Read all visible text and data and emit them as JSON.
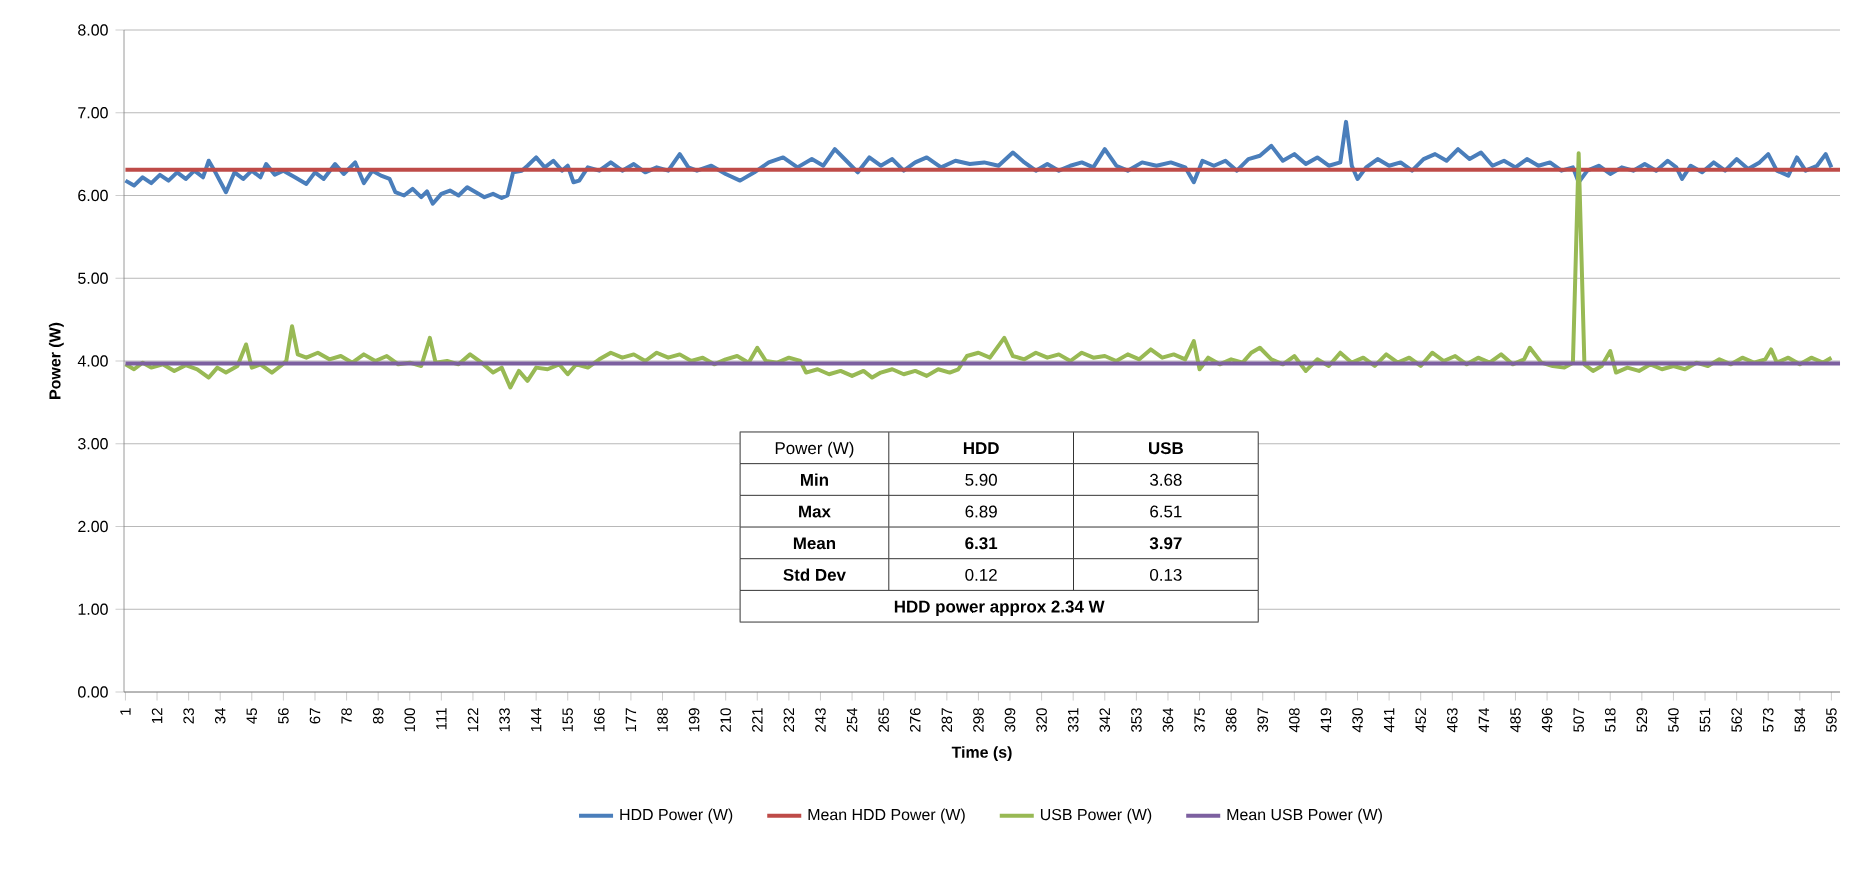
{
  "chart_data": {
    "type": "line",
    "xlabel": "Time (s)",
    "ylabel": "Power (W)",
    "xlim": [
      0.5,
      598
    ],
    "xticks": [
      1,
      12,
      23,
      34,
      45,
      56,
      67,
      78,
      89,
      100,
      111,
      122,
      133,
      144,
      155,
      166,
      177,
      188,
      199,
      210,
      221,
      232,
      243,
      254,
      265,
      276,
      287,
      298,
      309,
      320,
      331,
      342,
      353,
      364,
      375,
      386,
      397,
      408,
      419,
      430,
      441,
      452,
      463,
      474,
      485,
      496,
      507,
      518,
      529,
      540,
      551,
      562,
      573,
      584,
      595
    ],
    "ylim": [
      0,
      8
    ],
    "yticks": [
      {
        "value": 0,
        "label": "0.00"
      },
      {
        "value": 1,
        "label": "1.00"
      },
      {
        "value": 2,
        "label": "2.00"
      },
      {
        "value": 3,
        "label": "3.00"
      },
      {
        "value": 4,
        "label": "4.00"
      },
      {
        "value": 5,
        "label": "5.00"
      },
      {
        "value": 6,
        "label": "6.00"
      },
      {
        "value": 7,
        "label": "7.00"
      },
      {
        "value": 8,
        "label": "8.00"
      }
    ],
    "grid": "y",
    "legend": "bottom",
    "marker": "none",
    "line_style": "solid",
    "annotations": [
      "Power (W)",
      "HDD",
      "USB",
      "Min",
      "5.90",
      "3.68",
      "Max",
      "6.89",
      "6.51",
      "Mean",
      "6.31",
      "3.97",
      "Std Dev",
      "0.12",
      "0.13",
      "HDD power approx 2.34 W"
    ],
    "series": [
      {
        "name": "HDD Power (W)",
        "color": "#4a7ebb",
        "x": [
          1,
          4,
          7,
          10,
          13,
          16,
          19,
          22,
          25,
          28,
          30,
          32,
          36,
          39,
          42,
          45,
          48,
          50,
          53,
          56,
          60,
          64,
          67,
          70,
          74,
          77,
          81,
          84,
          87,
          90,
          93,
          95,
          98,
          101,
          104,
          106,
          108,
          111,
          114,
          117,
          120,
          123,
          126,
          129,
          132,
          134,
          136,
          139,
          141,
          144,
          147,
          150,
          153,
          155,
          157,
          159,
          162,
          166,
          170,
          174,
          178,
          182,
          186,
          190,
          194,
          197,
          200,
          205,
          210,
          215,
          220,
          225,
          230,
          235,
          240,
          244,
          248,
          252,
          256,
          260,
          264,
          268,
          272,
          276,
          280,
          285,
          290,
          295,
          300,
          305,
          310,
          314,
          318,
          322,
          326,
          330,
          334,
          338,
          342,
          346,
          350,
          355,
          360,
          365,
          370,
          373,
          376,
          380,
          384,
          388,
          392,
          396,
          400,
          404,
          408,
          412,
          416,
          420,
          424,
          426,
          428,
          430,
          433,
          437,
          441,
          445,
          449,
          453,
          457,
          461,
          465,
          469,
          473,
          477,
          481,
          485,
          489,
          493,
          497,
          501,
          505,
          507,
          510,
          514,
          518,
          522,
          526,
          530,
          534,
          538,
          541,
          543,
          546,
          550,
          554,
          558,
          562,
          566,
          570,
          573,
          576,
          580,
          583,
          586,
          590,
          593,
          595
        ],
        "values": [
          6.18,
          6.12,
          6.22,
          6.15,
          6.25,
          6.18,
          6.28,
          6.2,
          6.3,
          6.22,
          6.42,
          6.3,
          6.04,
          6.28,
          6.2,
          6.3,
          6.22,
          6.38,
          6.25,
          6.3,
          6.22,
          6.14,
          6.28,
          6.2,
          6.38,
          6.26,
          6.4,
          6.15,
          6.3,
          6.24,
          6.2,
          6.04,
          6.0,
          6.08,
          5.98,
          6.05,
          5.9,
          6.02,
          6.06,
          6.0,
          6.1,
          6.04,
          5.98,
          6.02,
          5.97,
          6.0,
          6.28,
          6.3,
          6.36,
          6.46,
          6.34,
          6.42,
          6.3,
          6.36,
          6.16,
          6.18,
          6.34,
          6.3,
          6.4,
          6.3,
          6.38,
          6.28,
          6.34,
          6.3,
          6.5,
          6.34,
          6.3,
          6.36,
          6.26,
          6.18,
          6.28,
          6.4,
          6.46,
          6.34,
          6.44,
          6.36,
          6.56,
          6.42,
          6.28,
          6.46,
          6.36,
          6.44,
          6.3,
          6.4,
          6.46,
          6.34,
          6.42,
          6.38,
          6.4,
          6.36,
          6.52,
          6.4,
          6.3,
          6.38,
          6.3,
          6.36,
          6.4,
          6.34,
          6.56,
          6.36,
          6.3,
          6.4,
          6.36,
          6.4,
          6.34,
          6.16,
          6.42,
          6.36,
          6.42,
          6.3,
          6.44,
          6.48,
          6.6,
          6.42,
          6.5,
          6.38,
          6.46,
          6.36,
          6.4,
          6.89,
          6.36,
          6.2,
          6.34,
          6.44,
          6.36,
          6.4,
          6.3,
          6.44,
          6.5,
          6.42,
          6.56,
          6.44,
          6.52,
          6.36,
          6.42,
          6.34,
          6.44,
          6.36,
          6.4,
          6.3,
          6.34,
          6.16,
          6.3,
          6.36,
          6.26,
          6.34,
          6.3,
          6.38,
          6.3,
          6.42,
          6.34,
          6.2,
          6.36,
          6.28,
          6.4,
          6.3,
          6.44,
          6.32,
          6.4,
          6.5,
          6.3,
          6.24,
          6.46,
          6.3,
          6.36,
          6.5,
          6.34
        ]
      },
      {
        "name": "Mean HDD Power (W)",
        "color": "#be4b48",
        "x": [
          1,
          598
        ],
        "values": [
          6.31,
          6.31
        ]
      },
      {
        "name": "USB Power (W)",
        "color": "#98b954",
        "x": [
          1,
          4,
          7,
          10,
          14,
          18,
          22,
          26,
          30,
          33,
          36,
          40,
          43,
          45,
          48,
          52,
          55,
          57,
          59,
          61,
          64,
          68,
          72,
          76,
          80,
          84,
          88,
          92,
          96,
          100,
          104,
          107,
          109,
          113,
          117,
          121,
          125,
          129,
          132,
          135,
          138,
          141,
          144,
          148,
          152,
          155,
          158,
          162,
          166,
          170,
          174,
          178,
          182,
          186,
          190,
          194,
          198,
          202,
          206,
          210,
          214,
          218,
          221,
          224,
          228,
          232,
          236,
          238,
          242,
          246,
          250,
          254,
          258,
          261,
          264,
          268,
          272,
          276,
          280,
          284,
          288,
          291,
          294,
          298,
          302,
          307,
          310,
          314,
          318,
          322,
          326,
          330,
          334,
          338,
          342,
          346,
          350,
          354,
          358,
          362,
          366,
          370,
          373,
          375,
          378,
          382,
          386,
          390,
          393,
          396,
          400,
          404,
          408,
          412,
          416,
          420,
          424,
          428,
          432,
          436,
          440,
          444,
          448,
          452,
          456,
          460,
          464,
          468,
          472,
          476,
          480,
          484,
          488,
          490,
          494,
          498,
          502,
          505,
          507,
          509,
          512,
          515,
          518,
          520,
          524,
          528,
          532,
          536,
          540,
          544,
          548,
          552,
          556,
          560,
          564,
          568,
          572,
          574,
          576,
          580,
          584,
          588,
          592,
          595
        ],
        "values": [
          3.96,
          3.9,
          3.98,
          3.92,
          3.96,
          3.88,
          3.95,
          3.9,
          3.8,
          3.92,
          3.86,
          3.94,
          4.2,
          3.92,
          3.96,
          3.86,
          3.94,
          4.0,
          4.42,
          4.08,
          4.04,
          4.1,
          4.02,
          4.06,
          3.98,
          4.08,
          4.0,
          4.06,
          3.96,
          3.98,
          3.94,
          4.28,
          3.98,
          4.0,
          3.96,
          4.08,
          3.98,
          3.86,
          3.92,
          3.68,
          3.88,
          3.76,
          3.92,
          3.9,
          3.96,
          3.84,
          3.96,
          3.92,
          4.02,
          4.1,
          4.04,
          4.08,
          4.0,
          4.1,
          4.04,
          4.08,
          4.0,
          4.04,
          3.96,
          4.02,
          4.06,
          3.98,
          4.16,
          4.0,
          3.98,
          4.04,
          4.0,
          3.86,
          3.9,
          3.84,
          3.88,
          3.82,
          3.88,
          3.8,
          3.86,
          3.9,
          3.84,
          3.88,
          3.82,
          3.9,
          3.86,
          3.9,
          4.06,
          4.1,
          4.04,
          4.28,
          4.06,
          4.02,
          4.1,
          4.04,
          4.08,
          4.0,
          4.1,
          4.04,
          4.06,
          4.0,
          4.08,
          4.02,
          4.14,
          4.04,
          4.08,
          4.02,
          4.24,
          3.9,
          4.04,
          3.96,
          4.02,
          3.98,
          4.1,
          4.16,
          4.02,
          3.96,
          4.06,
          3.88,
          4.02,
          3.94,
          4.1,
          3.98,
          4.04,
          3.94,
          4.08,
          3.98,
          4.04,
          3.94,
          4.1,
          4.0,
          4.06,
          3.96,
          4.04,
          3.98,
          4.08,
          3.96,
          4.02,
          4.16,
          3.98,
          3.94,
          3.92,
          3.98,
          6.51,
          3.96,
          3.88,
          3.94,
          4.12,
          3.86,
          3.92,
          3.88,
          3.96,
          3.9,
          3.94,
          3.9,
          3.98,
          3.94,
          4.02,
          3.96,
          4.04,
          3.98,
          4.02,
          4.14,
          3.98,
          4.04,
          3.96,
          4.04,
          3.98,
          4.04
        ]
      },
      {
        "name": "Mean USB Power (W)",
        "color": "#7d60a0",
        "x": [
          1,
          598
        ],
        "values": [
          3.97,
          3.97
        ]
      }
    ]
  }
}
